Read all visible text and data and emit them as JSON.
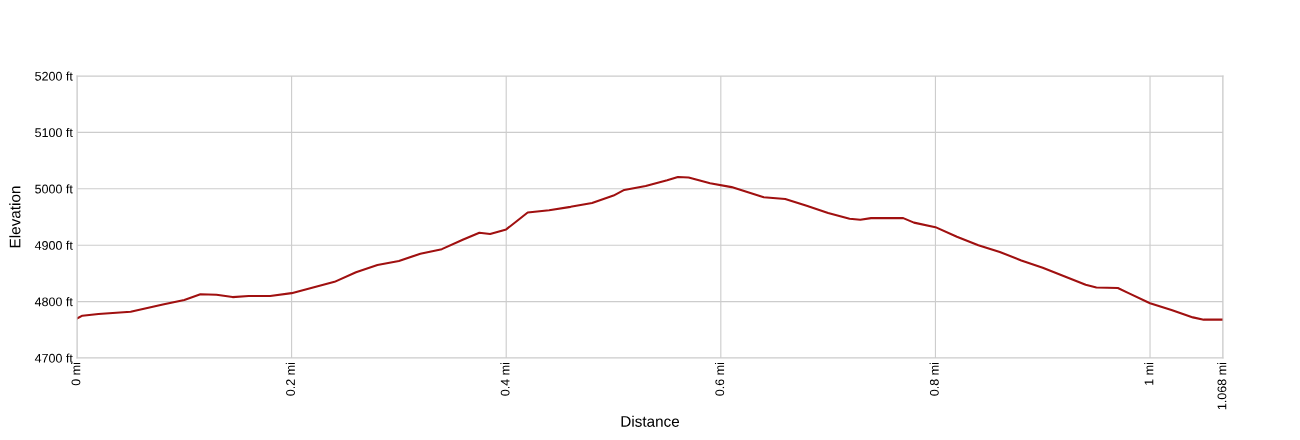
{
  "chart_data": {
    "type": "line",
    "xlabel": "Distance",
    "ylabel": "Elevation",
    "x": [
      0,
      0.005,
      0.02,
      0.05,
      0.08,
      0.1,
      0.115,
      0.13,
      0.145,
      0.16,
      0.18,
      0.2,
      0.22,
      0.24,
      0.26,
      0.28,
      0.3,
      0.32,
      0.34,
      0.36,
      0.375,
      0.385,
      0.4,
      0.41,
      0.42,
      0.44,
      0.46,
      0.48,
      0.5,
      0.51,
      0.53,
      0.55,
      0.56,
      0.57,
      0.59,
      0.61,
      0.64,
      0.66,
      0.68,
      0.7,
      0.72,
      0.73,
      0.74,
      0.77,
      0.78,
      0.8,
      0.82,
      0.84,
      0.86,
      0.88,
      0.9,
      0.92,
      0.94,
      0.95,
      0.97,
      0.98,
      1.0,
      1.02,
      1.04,
      1.05,
      1.068
    ],
    "series": [
      {
        "color": "#a01010",
        "values": [
          4770,
          4775,
          4778,
          4782,
          4795,
          4803,
          4813,
          4812,
          4808,
          4810,
          4810,
          4815,
          4825,
          4835,
          4852,
          4865,
          4872,
          4885,
          4893,
          4910,
          4922,
          4920,
          4928,
          4943,
          4958,
          4962,
          4968,
          4975,
          4988,
          4998,
          5005,
          5015,
          5021,
          5020,
          5010,
          5003,
          4985,
          4982,
          4970,
          4957,
          4947,
          4945,
          4948,
          4948,
          4940,
          4932,
          4915,
          4900,
          4888,
          4873,
          4860,
          4845,
          4830,
          4825,
          4824,
          4815,
          4797,
          4785,
          4772,
          4768,
          4768
        ]
      }
    ],
    "xlim": [
      0,
      1.068
    ],
    "xticks": [
      {
        "value": 0,
        "label": "0 mi"
      },
      {
        "value": 0.2,
        "label": "0.2 mi"
      },
      {
        "value": 0.4,
        "label": "0.4 mi"
      },
      {
        "value": 0.6,
        "label": "0.6 mi"
      },
      {
        "value": 0.8,
        "label": "0.8 mi"
      },
      {
        "value": 1,
        "label": "1 mi"
      },
      {
        "value": 1.068,
        "label": "1.068 mi"
      }
    ],
    "ylim": [
      4700,
      5200
    ],
    "yticks": [
      {
        "value": 4700,
        "label": "4700 ft"
      },
      {
        "value": 4800,
        "label": "4800 ft"
      },
      {
        "value": 4900,
        "label": "4900 ft"
      },
      {
        "value": 5000,
        "label": "5000 ft"
      },
      {
        "value": 5100,
        "label": "5100 ft"
      },
      {
        "value": 5200,
        "label": "5200 ft"
      }
    ],
    "grid": true,
    "legend": false,
    "marker": "none",
    "line_style": "solid"
  }
}
